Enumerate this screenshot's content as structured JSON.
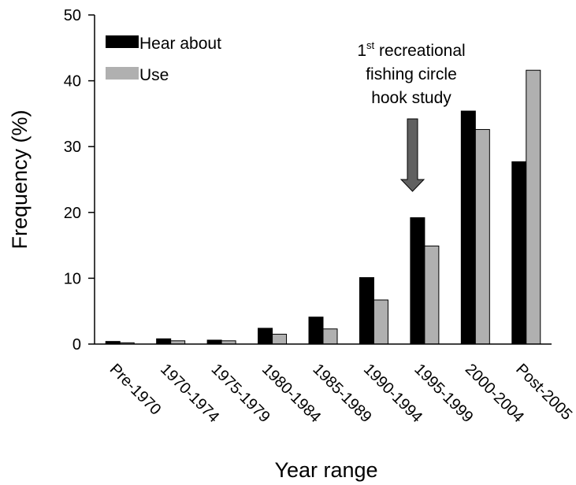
{
  "chart_data": {
    "type": "bar",
    "title": "",
    "xlabel": "Year range",
    "ylabel": "Frequency (%)",
    "ylim": [
      0,
      50
    ],
    "yticks": [
      0,
      10,
      20,
      30,
      40,
      50
    ],
    "categories": [
      "Pre-1970",
      "1970-1974",
      "1975-1979",
      "1980-1984",
      "1985-1989",
      "1990-1994",
      "1995-1999",
      "2000-2004",
      "Post-2005"
    ],
    "series": [
      {
        "name": "Hear about",
        "color": "#000000",
        "values": [
          0.4,
          0.8,
          0.6,
          2.4,
          4.1,
          10.1,
          19.2,
          35.4,
          27.7
        ]
      },
      {
        "name": "Use",
        "color": "#b0b0b0",
        "values": [
          0.2,
          0.5,
          0.5,
          1.5,
          2.3,
          6.7,
          14.9,
          32.6,
          41.6
        ]
      }
    ],
    "legend_position": "top-left",
    "grid": false,
    "annotation": {
      "line1_main": "1",
      "line1_sup": "st",
      "line1_rest": " recreational",
      "line2": "fishing circle",
      "line3": "hook study",
      "arrow_color": "#606060",
      "target_category": "1995-1999"
    }
  }
}
